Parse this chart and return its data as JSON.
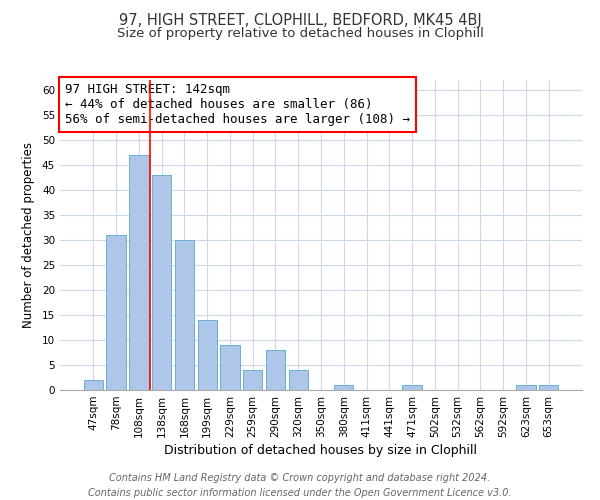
{
  "title": "97, HIGH STREET, CLOPHILL, BEDFORD, MK45 4BJ",
  "subtitle": "Size of property relative to detached houses in Clophill",
  "xlabel": "Distribution of detached houses by size in Clophill",
  "ylabel": "Number of detached properties",
  "footer_line1": "Contains HM Land Registry data © Crown copyright and database right 2024.",
  "footer_line2": "Contains public sector information licensed under the Open Government Licence v3.0.",
  "bar_labels": [
    "47sqm",
    "78sqm",
    "108sqm",
    "138sqm",
    "168sqm",
    "199sqm",
    "229sqm",
    "259sqm",
    "290sqm",
    "320sqm",
    "350sqm",
    "380sqm",
    "411sqm",
    "441sqm",
    "471sqm",
    "502sqm",
    "532sqm",
    "562sqm",
    "592sqm",
    "623sqm",
    "653sqm"
  ],
  "bar_values": [
    2,
    31,
    47,
    43,
    30,
    14,
    9,
    4,
    8,
    4,
    0,
    1,
    0,
    0,
    1,
    0,
    0,
    0,
    0,
    1,
    1
  ],
  "bar_color": "#aec6e8",
  "bar_edge_color": "#6baed6",
  "annotation_text_line1": "97 HIGH STREET: 142sqm",
  "annotation_text_line2": "← 44% of detached houses are smaller (86)",
  "annotation_text_line3": "56% of semi-detached houses are larger (108) →",
  "property_line_x": 2.5,
  "ylim": [
    0,
    62
  ],
  "yticks": [
    0,
    5,
    10,
    15,
    20,
    25,
    30,
    35,
    40,
    45,
    50,
    55,
    60
  ],
  "background_color": "#ffffff",
  "grid_color": "#ccd9e8",
  "title_fontsize": 10.5,
  "subtitle_fontsize": 9.5,
  "xlabel_fontsize": 9,
  "ylabel_fontsize": 8.5,
  "tick_fontsize": 7.5,
  "annotation_fontsize": 9,
  "footer_fontsize": 7
}
